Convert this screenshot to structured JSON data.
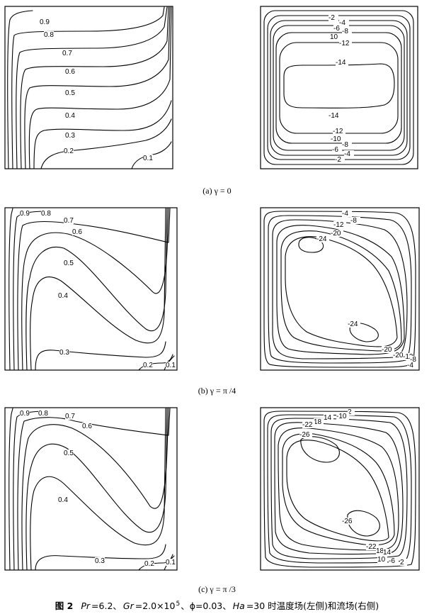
{
  "figure": {
    "number": "图 2",
    "caption_parts": [
      "Pr",
      "=6.2、",
      "Gr",
      "=2.0×10",
      "5",
      "、ϕ=0.03、",
      "Ha",
      "=30 时温度场(左侧)和流场(右侧)"
    ]
  },
  "rows": [
    {
      "caption": "(a) γ = 0",
      "temperature_labels": [
        "0.9",
        "0.8",
        "0.7",
        "0.6",
        "0.5",
        "0.4",
        "0.3",
        "0.2",
        "0.1"
      ],
      "stream_labels": [
        "-2",
        "-4",
        "-6",
        "-8",
        "10",
        "-12",
        "-14",
        "-14",
        "-12",
        "-10",
        "-8",
        "-6",
        "-4",
        "-2"
      ]
    },
    {
      "caption": "(b)  γ = π /4",
      "temperature_labels": [
        "0.9",
        "0.8",
        "0.7",
        "0.6",
        "0.5",
        "0.4",
        "0.3",
        "0.2",
        "0.1"
      ],
      "stream_labels": [
        "-4",
        "-8",
        "-12",
        "-20",
        "-24",
        "-24",
        "-20",
        "-20",
        "-12",
        "-8",
        "-4"
      ]
    },
    {
      "caption": "(c)  γ = π /3",
      "temperature_labels": [
        "0.9",
        "0.8",
        "0.7",
        "0.6",
        "0.5",
        "0.4",
        "0.3",
        "0.2",
        "0.1"
      ],
      "stream_labels": [
        "2",
        "-10",
        "14",
        "18",
        "-22",
        "-26",
        "-26",
        "-22",
        "18",
        "14",
        "10",
        "-6",
        "2"
      ]
    }
  ]
}
